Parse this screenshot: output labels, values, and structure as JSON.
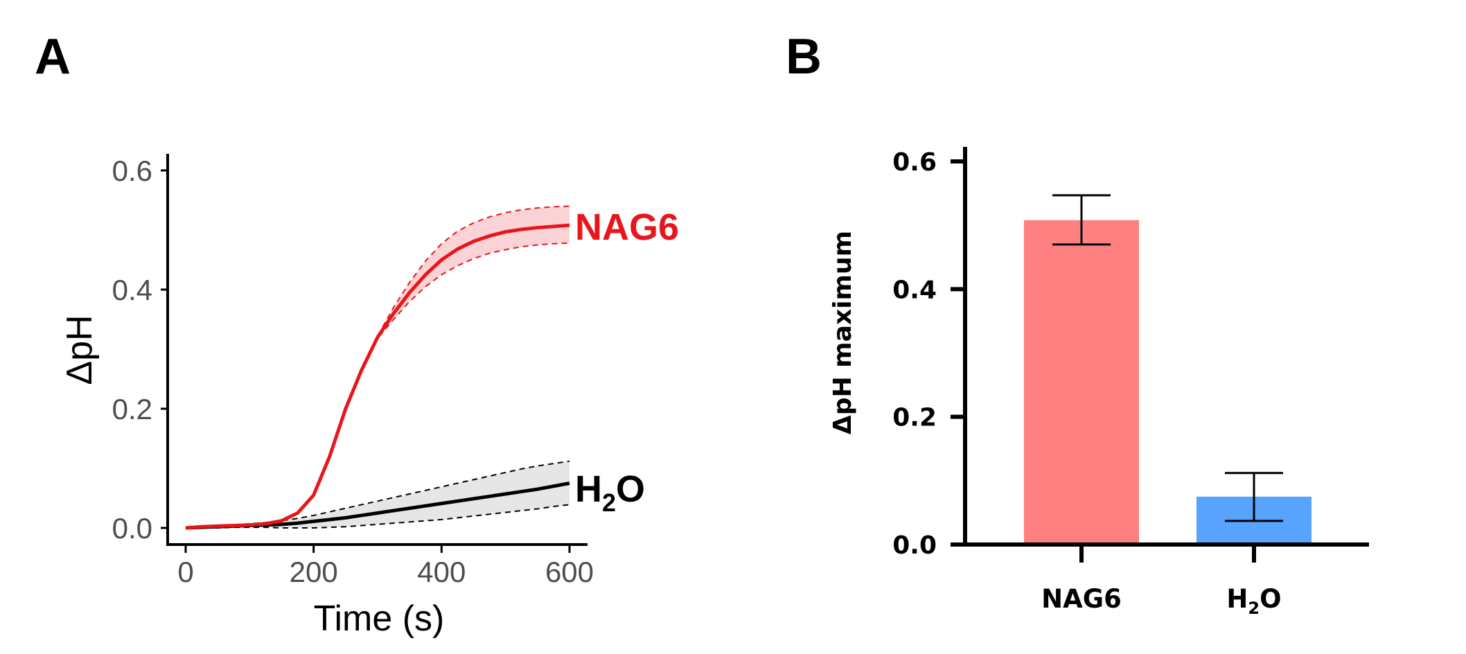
{
  "chart_data": [
    {
      "panel": "A",
      "type": "line",
      "xlabel": "Time (s)",
      "ylabel": "ΔpH",
      "xlim": [
        0,
        600
      ],
      "ylim": [
        0,
        0.6
      ],
      "x_ticks": [
        "0",
        "200",
        "400",
        "600"
      ],
      "y_ticks": [
        "0.0",
        "0.2",
        "0.4",
        "0.6"
      ],
      "x": [
        0,
        25,
        50,
        75,
        100,
        125,
        150,
        175,
        200,
        225,
        250,
        275,
        300,
        325,
        350,
        375,
        400,
        425,
        450,
        475,
        500,
        525,
        550,
        575,
        600
      ],
      "series": [
        {
          "name": "NAG6",
          "label_text": "NAG6",
          "color": "#e8161c",
          "band_color": "#f9d3d5",
          "values": [
            0.0,
            0.002,
            0.003,
            0.004,
            0.005,
            0.007,
            0.012,
            0.025,
            0.055,
            0.12,
            0.2,
            0.265,
            0.32,
            0.36,
            0.395,
            0.425,
            0.45,
            0.468,
            0.481,
            0.49,
            0.497,
            0.501,
            0.504,
            0.506,
            0.508
          ],
          "lower": [
            0.0,
            0.002,
            0.003,
            0.004,
            0.005,
            0.007,
            0.012,
            0.025,
            0.055,
            0.12,
            0.2,
            0.265,
            0.318,
            0.35,
            0.38,
            0.405,
            0.425,
            0.44,
            0.452,
            0.461,
            0.467,
            0.472,
            0.475,
            0.477,
            0.478
          ],
          "upper": [
            0.0,
            0.002,
            0.003,
            0.004,
            0.005,
            0.007,
            0.012,
            0.025,
            0.055,
            0.12,
            0.2,
            0.265,
            0.322,
            0.37,
            0.412,
            0.448,
            0.477,
            0.498,
            0.512,
            0.522,
            0.529,
            0.534,
            0.537,
            0.539,
            0.54
          ]
        },
        {
          "name": "H₂O",
          "label_main": "H",
          "label_sub": "2",
          "label_end": "O",
          "color": "#000000",
          "band_color": "#e6e6e6",
          "values": [
            0.0,
            0.001,
            0.002,
            0.003,
            0.004,
            0.005,
            0.006,
            0.008,
            0.011,
            0.014,
            0.017,
            0.021,
            0.025,
            0.029,
            0.033,
            0.037,
            0.041,
            0.045,
            0.049,
            0.053,
            0.057,
            0.061,
            0.065,
            0.07,
            0.075
          ],
          "lower": [
            0.0,
            0.0,
            0.0,
            0.001,
            0.001,
            0.001,
            0.0,
            0.0,
            0.0,
            0.001,
            0.002,
            0.004,
            0.006,
            0.008,
            0.01,
            0.012,
            0.014,
            0.017,
            0.02,
            0.023,
            0.026,
            0.029,
            0.032,
            0.036,
            0.039
          ],
          "upper": [
            0.0,
            0.002,
            0.004,
            0.005,
            0.007,
            0.009,
            0.012,
            0.016,
            0.021,
            0.027,
            0.033,
            0.039,
            0.045,
            0.051,
            0.057,
            0.063,
            0.069,
            0.075,
            0.081,
            0.087,
            0.093,
            0.099,
            0.104,
            0.108,
            0.112
          ]
        }
      ]
    },
    {
      "panel": "B",
      "type": "bar",
      "ylabel": "ΔpH maximum",
      "ylim": [
        0,
        0.6
      ],
      "y_ticks": [
        "0.0",
        "0.2",
        "0.4",
        "0.6"
      ],
      "categories": [
        {
          "label": "NAG6",
          "value": 0.508,
          "err_low": 0.47,
          "err_high": 0.547,
          "color": "#ff8080"
        },
        {
          "label_main": "H",
          "label_sub": "2",
          "label_end": "O",
          "value": 0.075,
          "err_low": 0.037,
          "err_high": 0.112,
          "color": "#57a3fd"
        }
      ]
    }
  ],
  "panels": {
    "a_letter": "A",
    "b_letter": "B"
  }
}
